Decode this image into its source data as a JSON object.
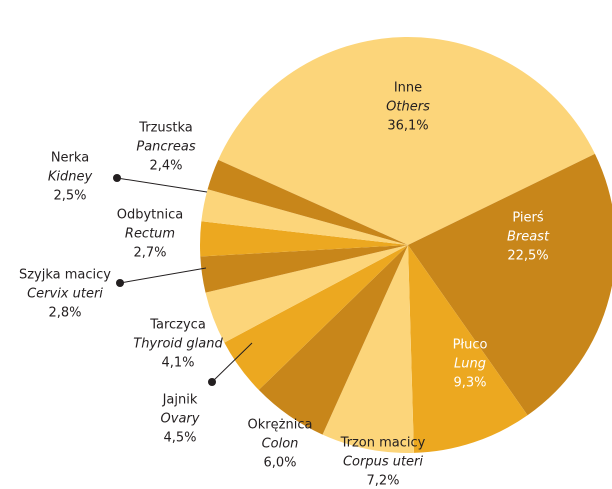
{
  "chart_data": {
    "type": "pie",
    "categories": [
      "Inne",
      "Pierś",
      "Płuco",
      "Trzon macicy",
      "Okrężnica",
      "Jajnik",
      "Tarczyca",
      "Szyjka macicy",
      "Odbytnica",
      "Nerka",
      "Trzustka"
    ],
    "categories_en": [
      "Others",
      "Breast",
      "Lung",
      "Corpus uteri",
      "Colon",
      "Ovary",
      "Thyroid gland",
      "Cervix uteri",
      "Rectum",
      "Kidney",
      "Pancreas"
    ],
    "values": [
      36.1,
      22.5,
      9.3,
      7.2,
      6.0,
      4.5,
      4.1,
      2.8,
      2.7,
      2.5,
      2.4
    ],
    "value_labels": [
      "36,1%",
      "22,5%",
      "9,3%",
      "7,2%",
      "6,0%",
      "4,5%",
      "4,1%",
      "2,8%",
      "2,7%",
      "2,5%",
      "2,4%"
    ],
    "colors": [
      "#fcd57a",
      "#c8861a",
      "#eca820",
      "#fcd57a",
      "#c8861a",
      "#eca820",
      "#fcd57a",
      "#c8861a",
      "#eca820",
      "#fcd57a",
      "#c8861a"
    ]
  }
}
